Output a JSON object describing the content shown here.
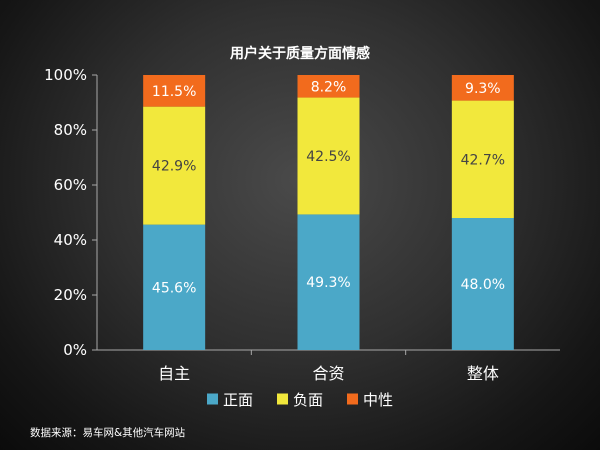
{
  "chart_data": {
    "type": "bar",
    "stacked": true,
    "title": "用户关于质量方面情感",
    "xlabel": "",
    "ylabel": "",
    "ylim": [
      0,
      100
    ],
    "y_ticks": [
      "0%",
      "20%",
      "40%",
      "60%",
      "80%",
      "100%"
    ],
    "categories": [
      "自主",
      "合资",
      "整体"
    ],
    "series": [
      {
        "name": "正面",
        "color": "#4ba8c8",
        "values": [
          45.6,
          49.3,
          48.0
        ],
        "labels": [
          "45.6%",
          "49.3%",
          "48.0%"
        ]
      },
      {
        "name": "负面",
        "color": "#f2e83c",
        "values": [
          42.9,
          42.5,
          42.7
        ],
        "labels": [
          "42.9%",
          "42.5%",
          "42.7%"
        ]
      },
      {
        "name": "中性",
        "color": "#f26b1d",
        "values": [
          11.5,
          8.2,
          9.3
        ],
        "labels": [
          "11.5%",
          "8.2%",
          "9.3%"
        ]
      }
    ],
    "grid": false,
    "legend_position": "bottom"
  },
  "source_note": "数据来源：易车网&其他汽车网站"
}
